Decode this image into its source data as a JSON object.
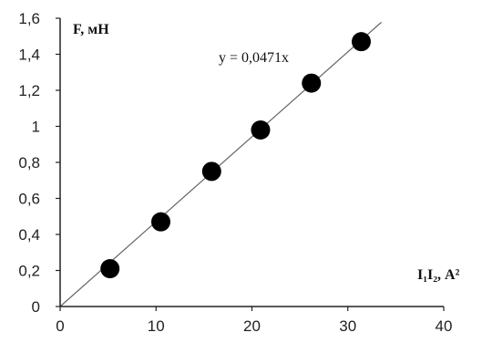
{
  "chart_data": {
    "type": "scatter",
    "title": "",
    "ylabel": "F, мН",
    "xlabel": "I₁I₂, А²",
    "xlim": [
      0,
      40
    ],
    "ylim": [
      0,
      1.6
    ],
    "x_ticks": [
      "0",
      "10",
      "20",
      "30",
      "40"
    ],
    "y_ticks": [
      "0",
      "0,2",
      "0,4",
      "0,6",
      "0,8",
      "1",
      "1,2",
      "1,4",
      "1,6"
    ],
    "grid": false,
    "series": [
      {
        "x": [
          5.2,
          10.5,
          15.8,
          20.9,
          26.2,
          31.4
        ],
        "y": [
          0.21,
          0.47,
          0.75,
          0.98,
          1.24,
          1.47
        ]
      }
    ],
    "trendline": {
      "slope": 0.0471,
      "intercept": 0,
      "label": "y = 0,0471x"
    },
    "colors": {
      "marker": "#000000",
      "axis": "#222222",
      "trendline": "#666666"
    }
  }
}
